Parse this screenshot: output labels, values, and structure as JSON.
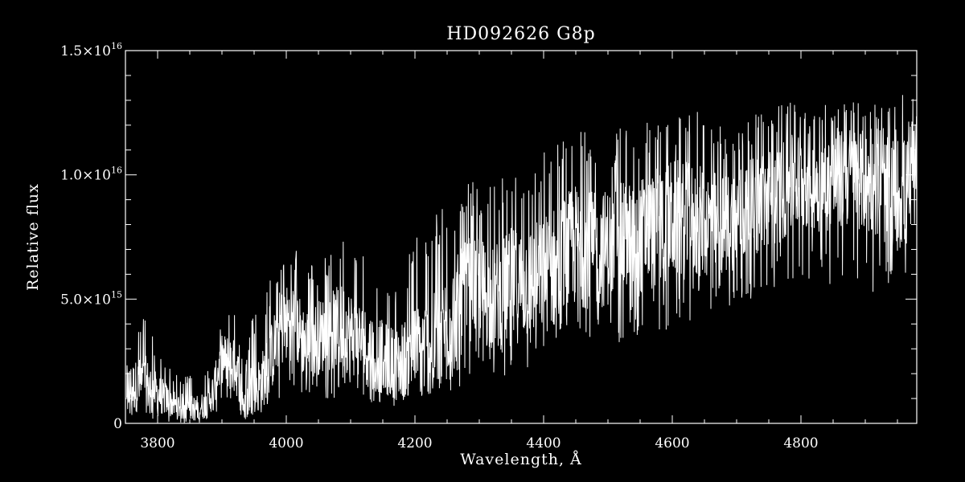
{
  "chart_data": {
    "type": "line",
    "title": "HD092626   G8p",
    "xlabel": "Wavelength, Å",
    "ylabel": "Relative flux",
    "xlim": [
      3750,
      4980
    ],
    "ylim": [
      0,
      1.5e+16
    ],
    "x_ticks": [
      {
        "value": 3800,
        "label": "3800"
      },
      {
        "value": 4000,
        "label": "4000"
      },
      {
        "value": 4200,
        "label": "4200"
      },
      {
        "value": 4400,
        "label": "4400"
      },
      {
        "value": 4600,
        "label": "4600"
      },
      {
        "value": 4800,
        "label": "4800"
      }
    ],
    "x_minor_step": 50,
    "y_ticks": [
      {
        "value": 0,
        "mant": "0",
        "exp": ""
      },
      {
        "value": 5000000000000000.0,
        "mant": "5.0×10",
        "exp": "15"
      },
      {
        "value": 1e+16,
        "mant": "1.0×10",
        "exp": "16"
      },
      {
        "value": 1.5e+16,
        "mant": "1.5×10",
        "exp": "16"
      }
    ],
    "y_minor_step": 1000000000000000.0,
    "grid": false,
    "background": "#000000",
    "line_color": "#ffffff",
    "series": [
      {
        "envelope": {
          "x": [
            3752,
            3780,
            3800,
            3830,
            3860,
            3880,
            3900,
            3915,
            3925,
            3935,
            3945,
            3960,
            3975,
            3990,
            4010,
            4030,
            4060,
            4090,
            4110,
            4140,
            4170,
            4200,
            4230,
            4260,
            4290,
            4320,
            4350,
            4380,
            4420,
            4450,
            4480,
            4520,
            4560,
            4600,
            4640,
            4680,
            4720,
            4760,
            4800,
            4840,
            4880,
            4920,
            4960,
            4980
          ],
          "mid": [
            1400000000000000.0,
            1600000000000000.0,
            1200000000000000.0,
            700000000000000.0,
            600000000000000.0,
            800000000000000.0,
            2600000000000000.0,
            2400000000000000.0,
            2000000000000000.0,
            600000000000000.0,
            1400000000000000.0,
            1600000000000000.0,
            2500000000000000.0,
            3800000000000000.0,
            4200000000000000.0,
            3200000000000000.0,
            3600000000000000.0,
            3900000000000000.0,
            3400000000000000.0,
            2800000000000000.0,
            2400000000000000.0,
            2900000000000000.0,
            3200000000000000.0,
            4400000000000000.0,
            5600000000000000.0,
            5000000000000000.0,
            5500000000000000.0,
            5700000000000000.0,
            6300000000000000.0,
            7200000000000000.0,
            6900000000000000.0,
            7300000000000000.0,
            7600000000000000.0,
            8200000000000000.0,
            8100000000000000.0,
            8000000000000000.0,
            8600000000000000.0,
            9200000000000000.0,
            9800000000000000.0,
            9600000000000000.0,
            1e+16,
            9400000000000000.0,
            9200000000000000.0,
            9400000000000000.0
          ],
          "hi": [
            3600000000000000.0,
            4500000000000000.0,
            3000000000000000.0,
            2000000000000000.0,
            1900000000000000.0,
            2200000000000000.0,
            4200000000000000.0,
            5000000000000000.0,
            3800000000000000.0,
            2000000000000000.0,
            4200000000000000.0,
            4600000000000000.0,
            5800000000000000.0,
            6800000000000000.0,
            7400000000000000.0,
            6300000000000000.0,
            6700000000000000.0,
            7600000000000000.0,
            6900000000000000.0,
            6400000000000000.0,
            5900000000000000.0,
            7500000000000000.0,
            8700000000000000.0,
            9100000000000000.0,
            9800000000000000.0,
            9500000000000000.0,
            1.06e+16,
            1.05e+16,
            1.17e+16,
            1.2e+16,
            1.16e+16,
            1.19e+16,
            1.23e+16,
            1.28e+16,
            1.26e+16,
            1.2e+16,
            1.23e+16,
            1.3e+16,
            1.31e+16,
            1.28e+16,
            1.3e+16,
            1.28e+16,
            1.33e+16,
            1.3e+16
          ],
          "lo": [
            200000000000000.0,
            200000000000000.0,
            100000000000000.0,
            0.0,
            0.0,
            100000000000000.0,
            600000000000000.0,
            600000000000000.0,
            200000000000000.0,
            0.0,
            300000000000000.0,
            400000000000000.0,
            800000000000000.0,
            1000000000000000.0,
            1500000000000000.0,
            1000000000000000.0,
            1000000000000000.0,
            1000000000000000.0,
            1000000000000000.0,
            800000000000000.0,
            700000000000000.0,
            800000000000000.0,
            1200000000000000.0,
            1200000000000000.0,
            1800000000000000.0,
            1600000000000000.0,
            1900000000000000.0,
            2200000000000000.0,
            2400000000000000.0,
            3000000000000000.0,
            2900000000000000.0,
            3200000000000000.0,
            3400000000000000.0,
            3800000000000000.0,
            4200000000000000.0,
            4400000000000000.0,
            5000000000000000.0,
            5400000000000000.0,
            5800000000000000.0,
            5500000000000000.0,
            5600000000000000.0,
            5200000000000000.0,
            4600000000000000.0,
            6200000000000000.0
          ]
        }
      }
    ]
  }
}
